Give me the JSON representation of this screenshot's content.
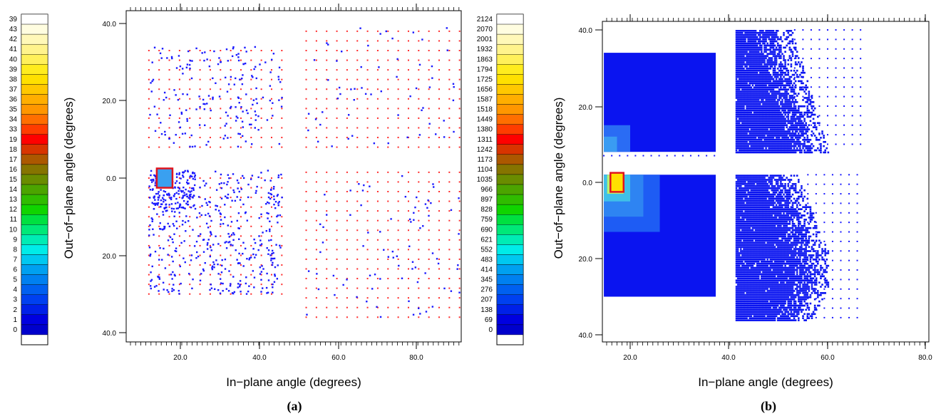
{
  "chart_data": [
    {
      "type": "scatter",
      "panel_label": "(a)",
      "xlabel": "In−plane angle (degrees)",
      "ylabel": "Out−of−plane angle (degrees)",
      "x_ticks": [
        "20.0",
        "40.0",
        "60.0",
        "80.0"
      ],
      "y_ticks": [
        "40.0",
        "20.0",
        "0.0",
        "20.0",
        "40.0"
      ],
      "xlim": [
        5,
        92
      ],
      "ylim": [
        -40,
        40
      ],
      "grid": false,
      "colors": {
        "grid_points": "#ff2b2b",
        "sampled_points": "#1a1aff",
        "highlight_box": "#e0141e"
      },
      "highlight_box": {
        "x": [
          14,
          18
        ],
        "y": [
          -2.5,
          2.5
        ]
      },
      "regions": [
        {
          "name": "upper-left",
          "x": [
            12,
            46
          ],
          "y": [
            8,
            34
          ]
        },
        {
          "name": "upper-right",
          "x": [
            52,
            91
          ],
          "y": [
            8,
            40
          ]
        },
        {
          "name": "lower-left",
          "x": [
            12,
            46
          ],
          "y": [
            -30,
            2
          ]
        },
        {
          "name": "lower-right",
          "x": [
            52,
            91
          ],
          "y": [
            -36,
            2
          ]
        }
      ],
      "colorbars": [
        {
          "side": "left",
          "labels": [
            "39",
            "43",
            "42",
            "41",
            "40",
            "39",
            "38",
            "37",
            "36",
            "35",
            "34",
            "33",
            "19",
            "18",
            "17",
            "16",
            "15",
            "14",
            "13",
            "12",
            "11",
            "10",
            "9",
            "8",
            "7",
            "6",
            "5",
            "4",
            "3",
            "2",
            "1",
            "0"
          ]
        },
        {
          "side": "right",
          "labels": [
            "2124",
            "2070",
            "2001",
            "1932",
            "1863",
            "1794",
            "1725",
            "1656",
            "1587",
            "1518",
            "1449",
            "1380",
            "1311",
            "1242",
            "1173",
            "1104",
            "1035",
            "966",
            "897",
            "828",
            "759",
            "690",
            "621",
            "552",
            "483",
            "414",
            "345",
            "276",
            "207",
            "138",
            "69",
            "0"
          ]
        }
      ],
      "colormap": [
        "#ffffff",
        "#fffde0",
        "#fff8b8",
        "#fff38c",
        "#fff05a",
        "#ffec1e",
        "#ffe000",
        "#ffc800",
        "#ffae00",
        "#ff9600",
        "#ff6e00",
        "#ff3c00",
        "#ff0000",
        "#d83400",
        "#ac5800",
        "#867400",
        "#6a8c00",
        "#4ca400",
        "#30bc00",
        "#10d400",
        "#00e040",
        "#00e878",
        "#00ecb4",
        "#00ece8",
        "#00c8f0",
        "#00a0f0",
        "#0080f0",
        "#0060f0",
        "#0040f0",
        "#0020e8",
        "#0000e0",
        "#0000cc"
      ]
    },
    {
      "type": "heatmap",
      "panel_label": "(b)",
      "xlabel": "In−plane angle (degrees)",
      "ylabel": "Out−of−plane angle (degrees)",
      "x_ticks": [
        "20.0",
        "40.0",
        "60.0",
        "80.0"
      ],
      "y_ticks": [
        "40.0",
        "20.0",
        "0.0",
        "20.0",
        "40.0"
      ],
      "xlim": [
        5,
        92
      ],
      "ylim": [
        -40,
        40
      ],
      "grid": false,
      "colors": {
        "fill": "#0a14f0",
        "light": "#2a8cf0",
        "hot": "#ffe000",
        "dots": "#1a1aff",
        "highlight_box": "#e0141e"
      },
      "highlight_box": {
        "x": [
          14,
          18
        ],
        "y": [
          -2.5,
          2.5
        ]
      },
      "regions": [
        {
          "name": "upper-left",
          "x": [
            12,
            46
          ],
          "y": [
            8,
            34
          ]
        },
        {
          "name": "upper-right",
          "x": [
            52,
            80
          ],
          "y": [
            8,
            40
          ]
        },
        {
          "name": "lower-left",
          "x": [
            12,
            46
          ],
          "y": [
            -30,
            2
          ]
        },
        {
          "name": "lower-right",
          "x": [
            52,
            80
          ],
          "y": [
            -36,
            2
          ]
        }
      ]
    }
  ]
}
